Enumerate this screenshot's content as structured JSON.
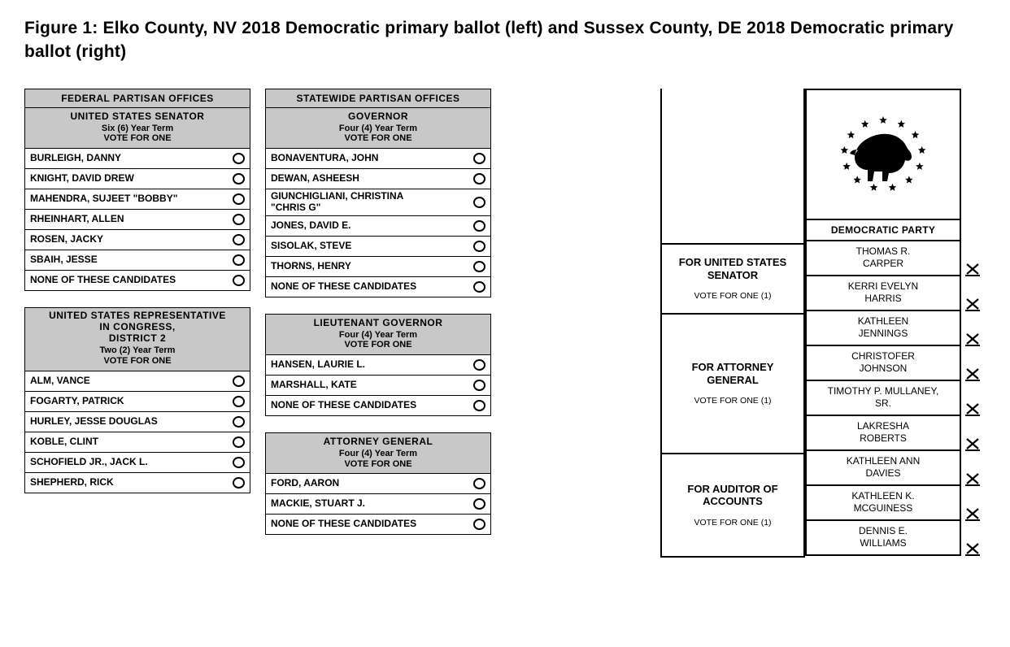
{
  "figure_title": "Figure 1: Elko County, NV 2018 Democratic primary ballot (left) and Sussex County, DE 2018 Democratic primary ballot (right)",
  "colors": {
    "header_bg": "#c8c8c8",
    "border": "#000000",
    "page_bg": "#ffffff",
    "text": "#000000"
  },
  "nevada": {
    "col1": [
      {
        "top_header": "FEDERAL  PARTISAN  OFFICES",
        "office_title": "UNITED  STATES  SENATOR",
        "term_line1": "Six (6) Year Term",
        "term_line2": "VOTE FOR ONE",
        "candidates": [
          "BURLEIGH, DANNY",
          "KNIGHT, DAVID DREW",
          "MAHENDRA, SUJEET \"BOBBY\"",
          "RHEINHART, ALLEN",
          "ROSEN, JACKY",
          "SBAIH, JESSE",
          "NONE OF THESE CANDIDATES"
        ]
      },
      {
        "office_title": "UNITED  STATES  REPRESENTATIVE\nIN CONGRESS,\nDISTRICT 2",
        "term_line1": "Two (2) Year Term",
        "term_line2": "VOTE FOR ONE",
        "candidates": [
          "ALM, VANCE",
          "FOGARTY, PATRICK",
          "HURLEY, JESSE DOUGLAS",
          "KOBLE, CLINT",
          "SCHOFIELD JR., JACK L.",
          "SHEPHERD, RICK"
        ]
      }
    ],
    "col2": [
      {
        "top_header": "STATEWIDE  PARTISAN  OFFICES",
        "office_title": "GOVERNOR",
        "term_line1": "Four (4) Year Term",
        "term_line2": "VOTE FOR ONE",
        "candidates": [
          "BONAVENTURA, JOHN",
          "DEWAN, ASHEESH",
          "GIUNCHIGLIANI, CHRISTINA\n\"CHRIS G\"",
          "JONES, DAVID E.",
          "SISOLAK, STEVE",
          "THORNS, HENRY",
          "NONE OF THESE CANDIDATES"
        ]
      },
      {
        "office_title": "LIEUTENANT  GOVERNOR",
        "term_line1": "Four (4) Year Term",
        "term_line2": "VOTE FOR ONE",
        "candidates": [
          "HANSEN, LAURIE L.",
          "MARSHALL, KATE",
          "NONE OF THESE CANDIDATES"
        ]
      },
      {
        "office_title": "ATTORNEY GENERAL",
        "term_line1": "Four (4) Year Term",
        "term_line2": "VOTE FOR ONE",
        "candidates": [
          "FORD, AARON",
          "MACKIE, STUART J.",
          "NONE OF THESE CANDIDATES"
        ]
      }
    ]
  },
  "delaware": {
    "party_name": "DEMOCRATIC PARTY",
    "candidate_cell_height": 43,
    "offices": [
      {
        "title": "FOR UNITED STATES SENATOR",
        "vote_for": "VOTE FOR ONE (1)",
        "candidates": [
          "THOMAS R. CARPER",
          "KERRI EVELYN HARRIS"
        ]
      },
      {
        "title": "FOR ATTORNEY GENERAL",
        "vote_for": "VOTE FOR ONE (1)",
        "candidates": [
          "KATHLEEN JENNINGS",
          "CHRISTOFER JOHNSON",
          "TIMOTHY P. MULLANEY, SR.",
          "LAKRESHA ROBERTS"
        ]
      },
      {
        "title": "FOR AUDITOR OF ACCOUNTS",
        "vote_for": "VOTE FOR ONE (1)",
        "candidates": [
          "KATHLEEN ANN DAVIES",
          "KATHLEEN K. MCGUINESS",
          "DENNIS E. WILLIAMS"
        ]
      }
    ]
  }
}
